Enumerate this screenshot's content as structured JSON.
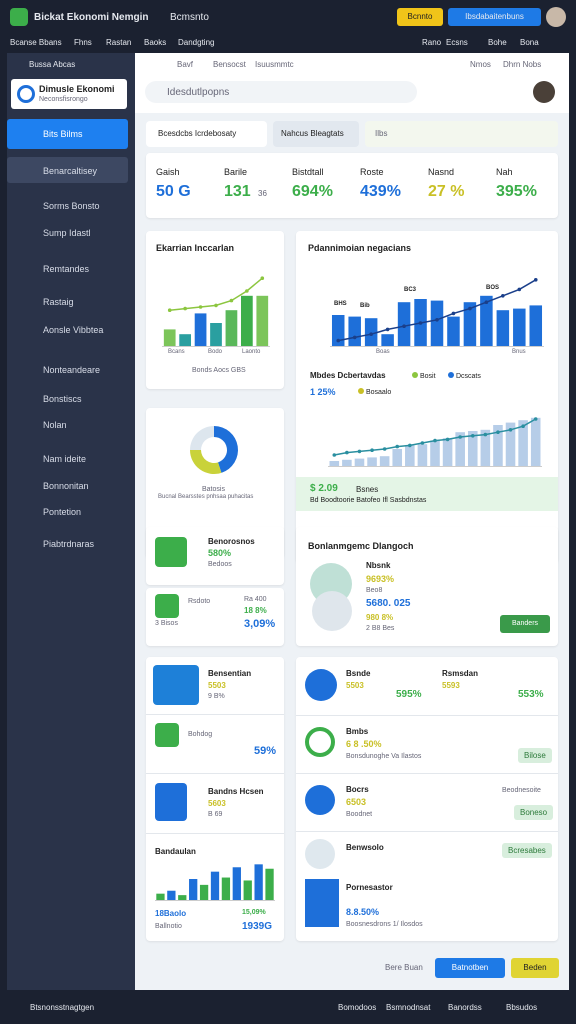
{
  "topbar": {
    "title": "Bickat Ekonomi Nemgin",
    "menu": "Bcmsnto",
    "yellow_button": "Bcnnto",
    "blue_button": "Ibsdabaitenbuns"
  },
  "navbar": {
    "left": [
      "Bcanse Bbans",
      "Fhns",
      "Rastan",
      "Baoks",
      "Dandgting"
    ],
    "right": [
      "Rano",
      "Ecsns",
      "Bohe",
      "Bona"
    ]
  },
  "sidebar": {
    "header": "Bussa Abcas",
    "brand_title": "Dimusle Ekonomi",
    "brand_subtitle": "Neconsfisrongo",
    "items": [
      "Bits Bilms",
      "Benarcaltisey",
      "Sorms Bonsto",
      "Sump Idastl",
      "Remtandes",
      "Rastaig",
      "Aonsle Vibbtea",
      "Nonteandeare",
      "Bonstiscs",
      "Nolan",
      "Nam ideite",
      "Bonnonitan",
      "Pontetion",
      "Piabtrdnaras"
    ]
  },
  "toolbar": {
    "items": [
      "Bavf",
      "Bensocst",
      "Isuusmmtc"
    ],
    "search": "Idesdutlpopns",
    "right": [
      "Nmos",
      "Dhrn Nobs"
    ]
  },
  "tabs": [
    "Bcesdcbs Icrdebosaty",
    "Nahcus Bleagtats",
    "Ilbs"
  ],
  "kpis": [
    {
      "label": "Gaish",
      "value": "50 G",
      "color": "#1e6fd9"
    },
    {
      "label": "Barile",
      "value": "131",
      "unit": "36",
      "color": "#3cae4a"
    },
    {
      "label": "Bistdtall",
      "value": "694%",
      "color": "#3cae4a"
    },
    {
      "label": "Roste",
      "value": "439%",
      "color": "#1e6fd9"
    },
    {
      "label": "Nasnd",
      "value": "27 %",
      "color": "#c9c026"
    },
    {
      "label": "Nah",
      "value": "395%",
      "color": "#3cae4a"
    }
  ],
  "bar_card": {
    "title": "Ekarrian Inccarlan",
    "bars": [
      22,
      16,
      42,
      30,
      46,
      64,
      64
    ],
    "bar_colors": [
      "#7cc55a",
      "#2a9fa0",
      "#1e6fd9",
      "#2a9fa0",
      "#5ab85a",
      "#3cae4a",
      "#7cc55a"
    ],
    "line": [
      46,
      48,
      50,
      52,
      58,
      70,
      86
    ],
    "line_color": "#8cc63f",
    "labels": [
      "Bcans",
      "Bodo",
      "Laonto"
    ],
    "caption": "Bonds Aocs GBS"
  },
  "donut_card": {
    "values": [
      45,
      30,
      25
    ],
    "colors": [
      "#1e6fd9",
      "#c9d23a",
      "#dde6ee"
    ],
    "title": "Batosis",
    "caption": "Bucnal Bearsstes pnhsaa puhacitas"
  },
  "combo_card": {
    "title": "Pdannimoian negacians",
    "bars": [
      40,
      38,
      36,
      16,
      56,
      60,
      58,
      38,
      56,
      64,
      46,
      48,
      52
    ],
    "bar_color": "#1e6fd9",
    "line": [
      8,
      12,
      16,
      22,
      26,
      30,
      34,
      42,
      48,
      56,
      64,
      72,
      84
    ],
    "line_color": "#1a3f8a",
    "bar_labels": [
      "BHS",
      "Bib",
      "BC3",
      "BOS"
    ],
    "axis_labels": [
      "Boas",
      "Bnus"
    ],
    "legend_title": "Mbdes Dcbertavdas",
    "legend": [
      "Bosit",
      "Dcscats",
      "Bosaalo"
    ],
    "legend_value": "1 25%"
  },
  "trend_card": {
    "bars": [
      10,
      12,
      14,
      16,
      18,
      30,
      36,
      38,
      44,
      48,
      58,
      60,
      62,
      70,
      74,
      78,
      82
    ],
    "bar_color": "#b6cde8",
    "line": [
      20,
      24,
      26,
      28,
      30,
      34,
      36,
      40,
      44,
      46,
      50,
      52,
      54,
      58,
      62,
      68,
      80
    ],
    "line_color": "#2a8fa0",
    "value": "$ 2.09",
    "value_label": "Bsnes",
    "caption": "Bd Boodtoorie Batofeo Ifl Sasbdnstas"
  },
  "small_cards": [
    {
      "title": "Benorosnos",
      "value": "580%",
      "sub": "Bedoos"
    },
    {
      "title": "Rsdoto",
      "value": "Ra 400",
      "sub": "18 8%",
      "foot": "3 Bisos",
      "big": "3,09%"
    }
  ],
  "segment_card": {
    "title": "Bonlanmgemc Dlangoch",
    "lines": [
      "Nbsnk",
      "9693%",
      "Beo8",
      "5680. 025",
      "980 8%",
      "2 B8 Bes"
    ],
    "button": "Banders"
  },
  "left_list": [
    {
      "title": "Bensentian",
      "value": "5503",
      "sub": "9 B%"
    },
    {
      "title": "Bohdog",
      "value": "59%"
    },
    {
      "title": "Bandns Hcsen",
      "value": "5603",
      "sub": "B 69"
    }
  ],
  "mini_chart": {
    "title": "Bandaulan",
    "bars": [
      10,
      14,
      8,
      30,
      22,
      40,
      32,
      46,
      28,
      50,
      44
    ],
    "colors": [
      "#3cae4a",
      "#1e6fd9"
    ],
    "labels": [
      "18Baolo",
      "15,09%",
      "Ballnotio",
      "1939G"
    ]
  },
  "right_list": [
    {
      "title": "Bsnde",
      "value": "5503",
      "big": "595%",
      "title2": "Rsmsdan",
      "value2": "5593",
      "big2": "553%"
    },
    {
      "title": "Bmbs",
      "value": "6 8 .50%",
      "sub": "Bonsdunoghe Va Ilastos",
      "badge": "Bilose"
    },
    {
      "title": "Bocrs",
      "value": "6503",
      "sub": "Boodnet",
      "right": "Beodnesoite",
      "badge": "Boneso"
    },
    {
      "title": "Benwsolo",
      "badge": "Bcresabes"
    },
    {
      "title": "Pornesastor",
      "value": "8.8.50%",
      "sub": "Boosnesdrons 1/ Ilosdos"
    }
  ],
  "actions": [
    "Bere Buan",
    "Batnotben",
    "Beden"
  ],
  "footer": {
    "left": "Btsnonsstnagtgen",
    "right": [
      "Bomodoos",
      "Bsmnodnsat",
      "Banordss",
      "Bbsudos"
    ]
  }
}
